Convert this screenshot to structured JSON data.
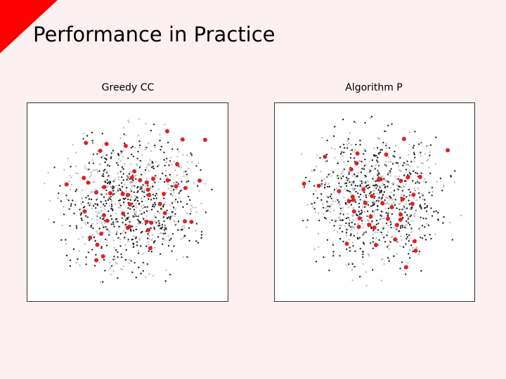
{
  "title": "Performance in Practice",
  "panels": [
    {
      "label": "Greedy CC"
    },
    {
      "label": "Algorithm P"
    }
  ]
}
